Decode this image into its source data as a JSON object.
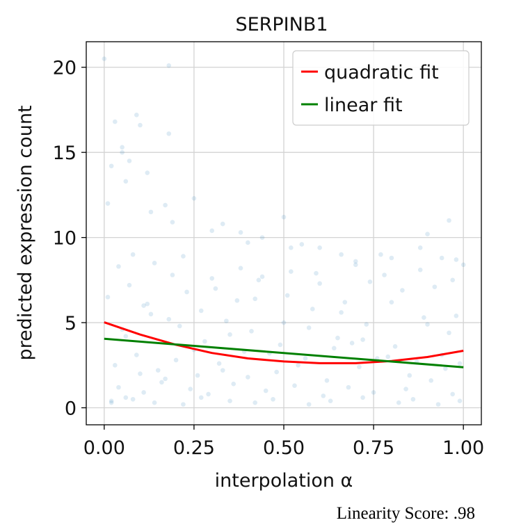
{
  "chart_data": {
    "type": "scatter",
    "title": "SERPINB1",
    "xlabel": "interpolation α",
    "ylabel": "predicted expression count",
    "xlim": [
      -0.05,
      1.05
    ],
    "ylim": [
      -1.0,
      21.5
    ],
    "x_ticks": [
      0.0,
      0.25,
      0.5,
      0.75,
      1.0
    ],
    "x_tick_labels": [
      "0.00",
      "0.25",
      "0.50",
      "0.75",
      "1.00"
    ],
    "y_ticks": [
      0,
      5,
      10,
      15,
      20
    ],
    "y_tick_labels": [
      "0",
      "5",
      "10",
      "15",
      "20"
    ],
    "grid": true,
    "legend_position": "top-right",
    "series": [
      {
        "name": "quadratic fit",
        "kind": "line",
        "color": "#ff0000",
        "x": [
          0.0,
          0.1,
          0.2,
          0.3,
          0.4,
          0.5,
          0.6,
          0.7,
          0.8,
          0.9,
          1.0
        ],
        "y": [
          5.02,
          4.3,
          3.7,
          3.22,
          2.9,
          2.72,
          2.62,
          2.62,
          2.75,
          2.98,
          3.35
        ]
      },
      {
        "name": "linear fit",
        "kind": "line",
        "color": "#008000",
        "x": [
          0.0,
          1.0
        ],
        "y": [
          4.05,
          2.38
        ]
      },
      {
        "kind": "scatter",
        "color": "#1f77b4",
        "opacity": 0.15,
        "x": [
          0.0,
          0.01,
          0.02,
          0.03,
          0.05,
          0.05,
          0.06,
          0.07,
          0.09,
          0.1,
          0.12,
          0.13,
          0.17,
          0.18,
          0.18,
          0.19,
          0.25,
          0.3,
          0.33,
          0.38,
          0.4,
          0.44,
          0.5,
          0.52,
          0.55,
          0.6,
          0.66,
          0.7,
          0.77,
          0.8,
          0.88,
          0.9,
          0.94,
          0.96,
          0.98,
          1.0,
          0.02,
          0.08,
          0.14,
          0.22,
          0.27,
          0.35,
          0.42,
          0.47,
          0.57,
          0.63,
          0.72,
          0.82,
          0.86,
          0.93,
          0.99,
          0.04,
          0.11,
          0.16,
          0.24,
          0.29,
          0.36,
          0.45,
          0.53,
          0.61,
          0.68,
          0.75,
          0.84,
          0.91,
          0.97,
          0.03,
          0.09,
          0.15,
          0.2,
          0.26,
          0.32,
          0.39,
          0.48,
          0.56,
          0.64,
          0.71,
          0.79,
          0.87,
          0.95,
          0.06,
          0.13,
          0.21,
          0.28,
          0.34,
          0.41,
          0.49,
          0.58,
          0.65,
          0.73,
          0.81,
          0.89,
          0.96,
          0.01,
          0.07,
          0.12,
          0.19,
          0.23,
          0.31,
          0.37,
          0.43,
          0.51,
          0.59,
          0.67,
          0.74,
          0.83,
          0.92,
          0.02,
          0.06,
          0.1,
          0.17,
          0.25,
          0.33,
          0.4,
          0.46,
          0.54,
          0.62,
          0.69,
          0.76,
          0.85,
          0.94,
          0.99,
          0.04,
          0.08,
          0.14,
          0.22,
          0.3,
          0.38,
          0.44,
          0.52,
          0.6,
          0.7,
          0.78,
          0.88,
          0.97,
          0.05,
          0.11,
          0.18,
          0.27,
          0.35,
          0.42,
          0.5,
          0.57,
          0.66,
          0.72,
          0.8,
          0.9,
          0.98
        ],
        "y": [
          20.5,
          12.0,
          14.2,
          16.8,
          15.0,
          15.3,
          13.3,
          14.5,
          17.2,
          16.6,
          13.8,
          11.5,
          11.9,
          16.1,
          20.1,
          10.9,
          12.3,
          10.4,
          10.8,
          10.3,
          9.7,
          10.0,
          11.2,
          9.4,
          9.6,
          9.4,
          9.0,
          8.6,
          9.0,
          8.8,
          9.4,
          10.2,
          8.8,
          11.0,
          8.7,
          8.4,
          0.4,
          0.5,
          0.3,
          0.2,
          0.6,
          0.4,
          0.3,
          0.5,
          0.2,
          0.4,
          0.6,
          0.3,
          0.5,
          0.2,
          0.4,
          1.2,
          0.9,
          1.5,
          1.1,
          0.8,
          1.4,
          1.0,
          1.3,
          0.7,
          1.2,
          0.9,
          1.1,
          1.6,
          0.8,
          2.5,
          3.1,
          2.2,
          2.8,
          1.9,
          2.6,
          3.3,
          2.1,
          2.9,
          3.5,
          2.4,
          3.0,
          2.7,
          2.3,
          4.2,
          5.5,
          4.8,
          3.9,
          5.1,
          4.5,
          3.7,
          5.8,
          4.1,
          4.9,
          3.6,
          5.3,
          4.4,
          6.5,
          7.2,
          6.1,
          7.8,
          6.8,
          7.0,
          6.3,
          7.5,
          6.6,
          7.9,
          6.2,
          7.4,
          6.9,
          7.1,
          0.3,
          0.6,
          2.0,
          1.7,
          3.4,
          2.2,
          1.8,
          3.2,
          2.5,
          1.6,
          3.8,
          2.9,
          1.9,
          3.1,
          2.6,
          8.3,
          9.0,
          8.5,
          8.9,
          7.6,
          8.2,
          7.7,
          8.0,
          7.3,
          8.4,
          7.8,
          8.1,
          7.5,
          4.6,
          6.0,
          5.2,
          5.7,
          4.3,
          6.4,
          5.0,
          4.7,
          5.6,
          4.0,
          6.2,
          4.9,
          5.4
        ]
      }
    ]
  },
  "caption": "Linearity Score: .98"
}
